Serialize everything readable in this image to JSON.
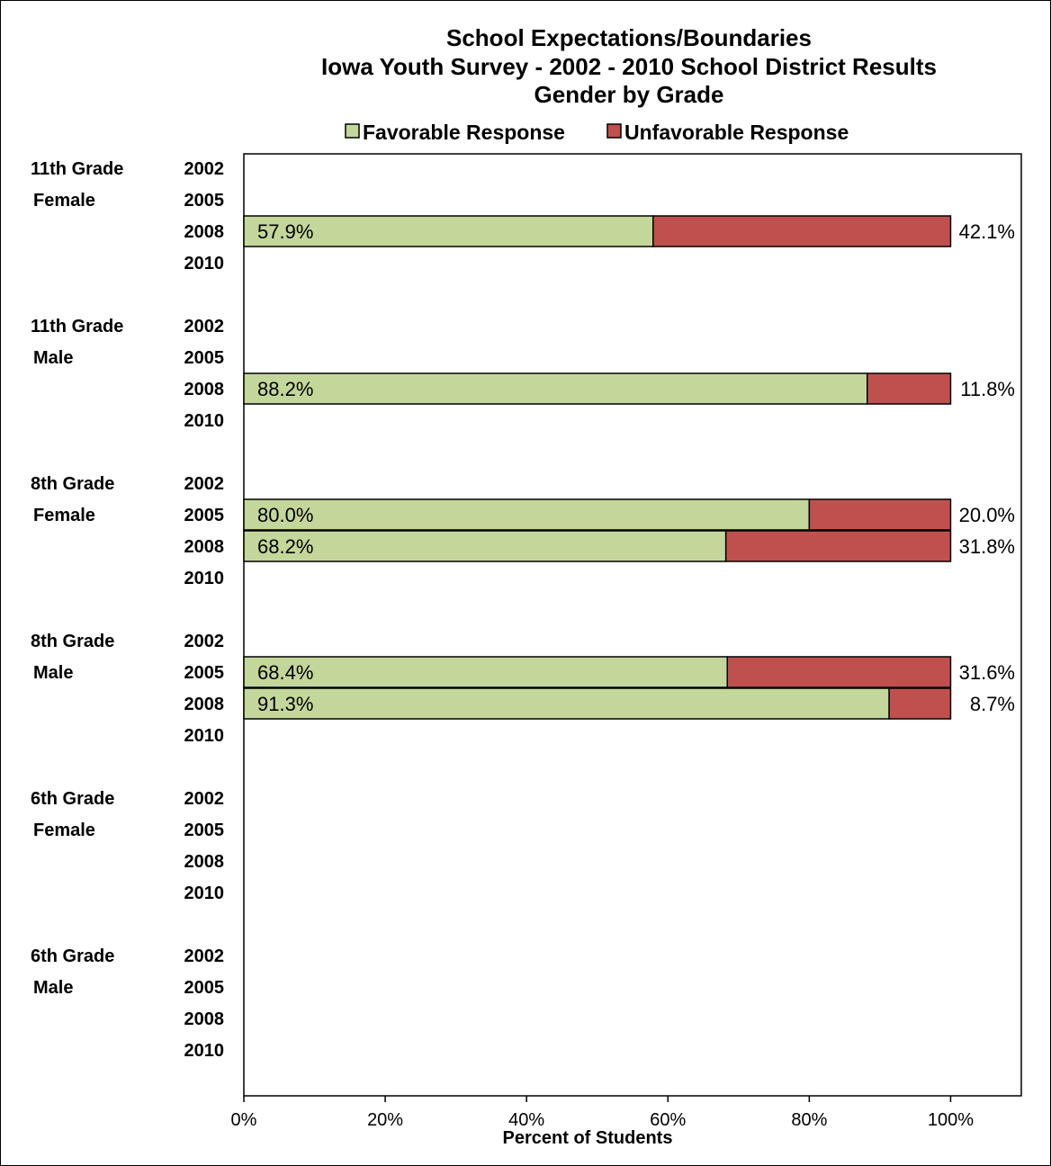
{
  "chart_data": {
    "type": "bar",
    "orientation": "horizontal",
    "stacked": true,
    "title": [
      "School Expectations/Boundaries",
      "Iowa Youth Survey - 2002 - 2010 School District Results",
      "Gender by Grade"
    ],
    "xlabel": "Percent of Students",
    "xlim": [
      0,
      110
    ],
    "xticks": [
      0,
      20,
      40,
      60,
      80,
      100
    ],
    "xtick_labels": [
      "0%",
      "20%",
      "40%",
      "60%",
      "80%",
      "100%"
    ],
    "legend": {
      "placement": "top",
      "entries": [
        "Favorable Response",
        "Unfavorable Response"
      ]
    },
    "colors": {
      "favorable": "#c4d79b",
      "unfavorable": "#c0504d",
      "border": "#000000"
    },
    "years": [
      "2002",
      "2005",
      "2008",
      "2010"
    ],
    "groups": [
      {
        "grade": "11th Grade",
        "gender": "Female",
        "rows": [
          {
            "year": "2002",
            "favorable": null,
            "unfavorable": null,
            "favorable_label": "",
            "unfavorable_label": ""
          },
          {
            "year": "2005",
            "favorable": null,
            "unfavorable": null,
            "favorable_label": "",
            "unfavorable_label": ""
          },
          {
            "year": "2008",
            "favorable": 57.9,
            "unfavorable": 42.1,
            "favorable_label": "57.9%",
            "unfavorable_label": "42.1%"
          },
          {
            "year": "2010",
            "favorable": null,
            "unfavorable": null,
            "favorable_label": "",
            "unfavorable_label": ""
          }
        ]
      },
      {
        "grade": "11th Grade",
        "gender": "Male",
        "rows": [
          {
            "year": "2002",
            "favorable": null,
            "unfavorable": null,
            "favorable_label": "",
            "unfavorable_label": ""
          },
          {
            "year": "2005",
            "favorable": null,
            "unfavorable": null,
            "favorable_label": "",
            "unfavorable_label": ""
          },
          {
            "year": "2008",
            "favorable": 88.2,
            "unfavorable": 11.8,
            "favorable_label": "88.2%",
            "unfavorable_label": "11.8%"
          },
          {
            "year": "2010",
            "favorable": null,
            "unfavorable": null,
            "favorable_label": "",
            "unfavorable_label": ""
          }
        ]
      },
      {
        "grade": "8th Grade",
        "gender": "Female",
        "rows": [
          {
            "year": "2002",
            "favorable": null,
            "unfavorable": null,
            "favorable_label": "",
            "unfavorable_label": ""
          },
          {
            "year": "2005",
            "favorable": 80.0,
            "unfavorable": 20.0,
            "favorable_label": "80.0%",
            "unfavorable_label": "20.0%"
          },
          {
            "year": "2008",
            "favorable": 68.2,
            "unfavorable": 31.8,
            "favorable_label": "68.2%",
            "unfavorable_label": "31.8%"
          },
          {
            "year": "2010",
            "favorable": null,
            "unfavorable": null,
            "favorable_label": "",
            "unfavorable_label": ""
          }
        ]
      },
      {
        "grade": "8th Grade",
        "gender": "Male",
        "rows": [
          {
            "year": "2002",
            "favorable": null,
            "unfavorable": null,
            "favorable_label": "",
            "unfavorable_label": ""
          },
          {
            "year": "2005",
            "favorable": 68.4,
            "unfavorable": 31.6,
            "favorable_label": "68.4%",
            "unfavorable_label": "31.6%"
          },
          {
            "year": "2008",
            "favorable": 91.3,
            "unfavorable": 8.7,
            "favorable_label": "91.3%",
            "unfavorable_label": "8.7%"
          },
          {
            "year": "2010",
            "favorable": null,
            "unfavorable": null,
            "favorable_label": "",
            "unfavorable_label": ""
          }
        ]
      },
      {
        "grade": "6th Grade",
        "gender": "Female",
        "rows": [
          {
            "year": "2002",
            "favorable": null,
            "unfavorable": null,
            "favorable_label": "",
            "unfavorable_label": ""
          },
          {
            "year": "2005",
            "favorable": null,
            "unfavorable": null,
            "favorable_label": "",
            "unfavorable_label": ""
          },
          {
            "year": "2008",
            "favorable": null,
            "unfavorable": null,
            "favorable_label": "",
            "unfavorable_label": ""
          },
          {
            "year": "2010",
            "favorable": null,
            "unfavorable": null,
            "favorable_label": "",
            "unfavorable_label": ""
          }
        ]
      },
      {
        "grade": "6th Grade",
        "gender": "Male",
        "rows": [
          {
            "year": "2002",
            "favorable": null,
            "unfavorable": null,
            "favorable_label": "",
            "unfavorable_label": ""
          },
          {
            "year": "2005",
            "favorable": null,
            "unfavorable": null,
            "favorable_label": "",
            "unfavorable_label": ""
          },
          {
            "year": "2008",
            "favorable": null,
            "unfavorable": null,
            "favorable_label": "",
            "unfavorable_label": ""
          },
          {
            "year": "2010",
            "favorable": null,
            "unfavorable": null,
            "favorable_label": "",
            "unfavorable_label": ""
          }
        ]
      }
    ]
  }
}
